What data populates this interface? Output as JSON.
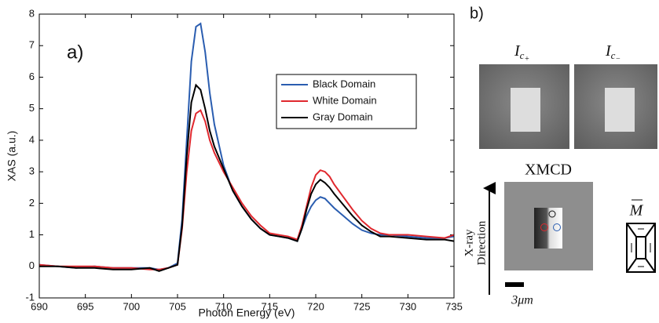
{
  "chart_data": {
    "type": "line",
    "annotation": "a)",
    "x_label": "Photon Energy (eV)",
    "y_label": "XAS (a.u.)",
    "x": [
      690,
      692,
      694,
      696,
      698,
      700,
      702,
      703,
      704,
      705,
      705.5,
      706,
      706.5,
      707,
      707.5,
      708,
      708.5,
      709,
      710,
      711,
      712,
      713,
      714,
      715,
      716,
      717,
      718,
      718.5,
      719,
      719.5,
      720,
      720.5,
      721,
      721.5,
      722,
      723,
      724,
      725,
      726,
      727,
      728,
      730,
      732,
      734,
      735
    ],
    "series": [
      {
        "name": "Black Domain",
        "color": "#2a5db0",
        "values": [
          0.05,
          0,
          -0.05,
          0,
          -0.05,
          -0.05,
          -0.05,
          -0.1,
          -0.05,
          0.1,
          1.5,
          4.0,
          6.5,
          7.6,
          7.7,
          6.8,
          5.5,
          4.5,
          3.2,
          2.4,
          1.9,
          1.5,
          1.2,
          1.0,
          0.95,
          0.9,
          0.8,
          1.2,
          1.6,
          1.9,
          2.1,
          2.2,
          2.15,
          2.0,
          1.85,
          1.6,
          1.35,
          1.15,
          1.05,
          1.0,
          1.0,
          0.95,
          0.9,
          0.9,
          0.95
        ]
      },
      {
        "name": "White Domain",
        "color": "#e0282e",
        "values": [
          0.05,
          0,
          0,
          0,
          -0.05,
          -0.05,
          -0.1,
          -0.1,
          -0.05,
          0.05,
          1.2,
          3.0,
          4.3,
          4.85,
          4.95,
          4.6,
          4.0,
          3.6,
          3.0,
          2.5,
          2.0,
          1.6,
          1.3,
          1.05,
          1.0,
          0.95,
          0.85,
          1.3,
          1.9,
          2.5,
          2.9,
          3.05,
          3.0,
          2.85,
          2.6,
          2.2,
          1.8,
          1.45,
          1.2,
          1.05,
          1.0,
          1.0,
          0.95,
          0.9,
          1.0
        ]
      },
      {
        "name": "Gray Domain",
        "color": "#000000",
        "values": [
          0,
          0,
          -0.05,
          -0.05,
          -0.1,
          -0.1,
          -0.05,
          -0.15,
          -0.05,
          0.05,
          1.3,
          3.5,
          5.2,
          5.75,
          5.6,
          5.0,
          4.3,
          3.8,
          3.1,
          2.4,
          1.9,
          1.5,
          1.2,
          1.0,
          0.95,
          0.9,
          0.8,
          1.2,
          1.8,
          2.3,
          2.6,
          2.75,
          2.65,
          2.5,
          2.3,
          1.95,
          1.6,
          1.3,
          1.1,
          0.95,
          0.95,
          0.9,
          0.85,
          0.85,
          0.8
        ]
      }
    ],
    "xlim": [
      690,
      735
    ],
    "ylim": [
      -1,
      8
    ],
    "xticks": [
      690,
      695,
      700,
      705,
      710,
      715,
      720,
      725,
      730,
      735
    ],
    "yticks": [
      -1,
      0,
      1,
      2,
      3,
      4,
      5,
      6,
      7,
      8
    ],
    "legend": "upper right"
  },
  "panel_b": {
    "label": "b)",
    "image_plus": {
      "main": "I",
      "sub": "c",
      "subsub": "+"
    },
    "image_minus": {
      "main": "I",
      "sub": "c",
      "subsub": "−"
    },
    "xmcd_title": "XMCD",
    "direction_label": [
      "X-ray",
      "Direction"
    ],
    "scale_bar": "3μm",
    "magnetization": "M"
  }
}
